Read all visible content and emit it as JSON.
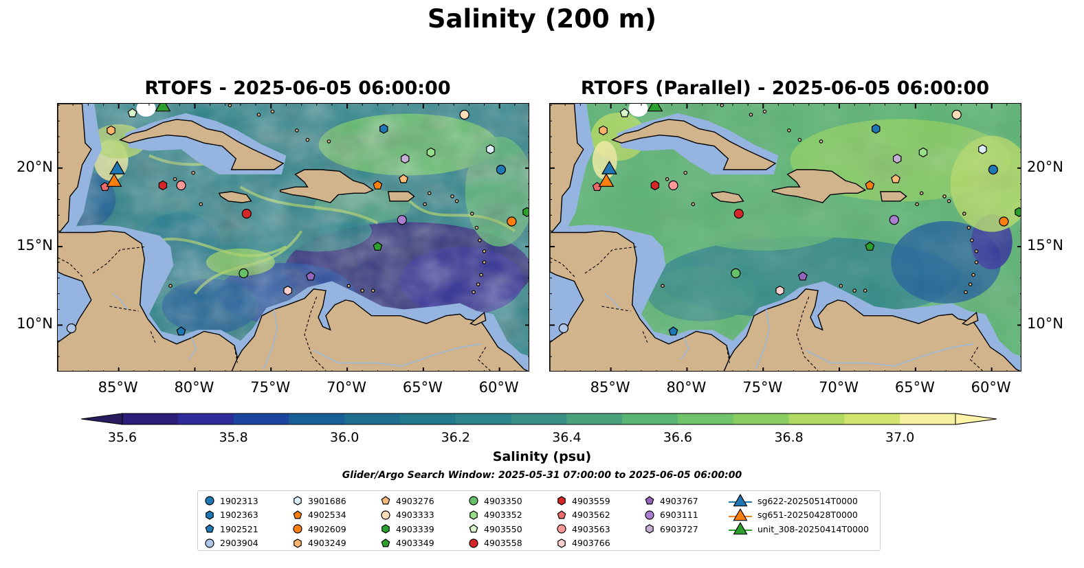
{
  "title": "Salinity (200 m)",
  "panels": [
    {
      "title": "RTOFS - 2025-06-05 06:00:00"
    },
    {
      "title": "RTOFS (Parallel) - 2025-06-05 06:00:00"
    }
  ],
  "map": {
    "lon_range": [
      -89,
      -58
    ],
    "lat_range": [
      7,
      24.1
    ],
    "lon_ticks": [
      "85°W",
      "80°W",
      "75°W",
      "70°W",
      "65°W",
      "60°W"
    ],
    "lon_tick_values": [
      -85,
      -80,
      -75,
      -70,
      -65,
      -60
    ],
    "lat_ticks": [
      "10°N",
      "15°N",
      "20°N"
    ],
    "lat_tick_values": [
      10,
      15,
      20
    ],
    "land_color": "#d2b48c",
    "shelf_color": "#96b4e0"
  },
  "colorbar": {
    "label": "Salinity (psu)",
    "min": 35.6,
    "max": 37.0,
    "step": 0.1,
    "ticks": [
      "35.6",
      "35.8",
      "36.0",
      "36.2",
      "36.4",
      "36.6",
      "36.8",
      "37.0"
    ],
    "colors": [
      "#2c1e78",
      "#2e2b9a",
      "#1c45a0",
      "#1a5e96",
      "#1f6e90",
      "#23798c",
      "#2d848a",
      "#3b9085",
      "#4aa27c",
      "#5cb474",
      "#6fc46a",
      "#8ace62",
      "#b0da62",
      "#d2e46e",
      "#f5f0a0"
    ]
  },
  "search_window": "Glider/Argo Search Window: 2025-05-31 07:00:00 to 2025-06-05 06:00:00",
  "legend": {
    "columns": [
      [
        {
          "label": "1902313",
          "shape": "circle",
          "color": "#1f77b4"
        },
        {
          "label": "1902363",
          "shape": "hexagon",
          "color": "#1f77b4"
        },
        {
          "label": "1902521",
          "shape": "pentagon",
          "color": "#1f77b4"
        },
        {
          "label": "2903904",
          "shape": "circle",
          "color": "#aec7e8"
        }
      ],
      [
        {
          "label": "3901686",
          "shape": "hexagon",
          "color": "#dceefa"
        },
        {
          "label": "4902534",
          "shape": "pentagon",
          "color": "#ff7f0e"
        },
        {
          "label": "4902609",
          "shape": "circle",
          "color": "#ff7f0e"
        },
        {
          "label": "4903249",
          "shape": "hexagon",
          "color": "#ffb36b"
        }
      ],
      [
        {
          "label": "4903276",
          "shape": "pentagon",
          "color": "#ffbb78"
        },
        {
          "label": "4903333",
          "shape": "circle",
          "color": "#ffdcb8"
        },
        {
          "label": "4903339",
          "shape": "hexagon",
          "color": "#2ca02c"
        },
        {
          "label": "4903349",
          "shape": "pentagon",
          "color": "#2ca02c"
        }
      ],
      [
        {
          "label": "4903350",
          "shape": "circle",
          "color": "#66c266"
        },
        {
          "label": "4903352",
          "shape": "hexagon",
          "color": "#98df8a"
        },
        {
          "label": "4903550",
          "shape": "pentagon",
          "color": "#d8f5cc"
        },
        {
          "label": "4903558",
          "shape": "circle",
          "color": "#d62728"
        }
      ],
      [
        {
          "label": "4903559",
          "shape": "hexagon",
          "color": "#d62728"
        },
        {
          "label": "4903562",
          "shape": "pentagon",
          "color": "#ee6a6a"
        },
        {
          "label": "4903563",
          "shape": "circle",
          "color": "#ff9896"
        },
        {
          "label": "4903766",
          "shape": "hexagon",
          "color": "#ffd0cf"
        }
      ],
      [
        {
          "label": "4903767",
          "shape": "pentagon",
          "color": "#9467bd"
        },
        {
          "label": "6903111",
          "shape": "circle",
          "color": "#a97fd0"
        },
        {
          "label": "6903727",
          "shape": "hexagon",
          "color": "#c5b0d5"
        }
      ],
      [
        {
          "label": "sg622-20250514T0000",
          "shape": "triangle",
          "color": "#1f77b4"
        },
        {
          "label": "sg651-20250428T0000",
          "shape": "triangle",
          "color": "#ff7f0e"
        },
        {
          "label": "unit_308-20250414T0000",
          "shape": "triangle",
          "color": "#2ca02c"
        }
      ]
    ]
  },
  "floats": [
    {
      "id": "1902313",
      "shape": "circle",
      "color": "#1f77b4",
      "lon": -59.9,
      "lat": 19.9
    },
    {
      "id": "1902363",
      "shape": "hexagon",
      "color": "#1f77b4",
      "lon": -67.6,
      "lat": 22.5
    },
    {
      "id": "1902521",
      "shape": "pentagon",
      "color": "#1f77b4",
      "lon": -80.9,
      "lat": 9.6
    },
    {
      "id": "2903904",
      "shape": "circle",
      "color": "#aec7e8",
      "lon": -88.1,
      "lat": 9.8
    },
    {
      "id": "3901686",
      "shape": "hexagon",
      "color": "#dceefa",
      "lon": -60.6,
      "lat": 21.2
    },
    {
      "id": "4902534",
      "shape": "pentagon",
      "color": "#ff7f0e",
      "lon": -68.0,
      "lat": 18.9
    },
    {
      "id": "4902609",
      "shape": "circle",
      "color": "#ff7f0e",
      "lon": -59.2,
      "lat": 16.6
    },
    {
      "id": "4903249",
      "shape": "hexagon",
      "color": "#ffb36b",
      "lon": -85.5,
      "lat": 22.4
    },
    {
      "id": "4903276",
      "shape": "pentagon",
      "color": "#ffbb78",
      "lon": -66.3,
      "lat": 19.3
    },
    {
      "id": "4903333",
      "shape": "circle",
      "color": "#ffdcb8",
      "lon": -62.3,
      "lat": 23.4
    },
    {
      "id": "4903339",
      "shape": "hexagon",
      "color": "#2ca02c",
      "lon": -58.2,
      "lat": 17.2
    },
    {
      "id": "4903349",
      "shape": "pentagon",
      "color": "#2ca02c",
      "lon": -68.0,
      "lat": 15.0
    },
    {
      "id": "4903350",
      "shape": "circle",
      "color": "#66c266",
      "lon": -76.8,
      "lat": 13.3
    },
    {
      "id": "4903352",
      "shape": "hexagon",
      "color": "#98df8a",
      "lon": -64.5,
      "lat": 21.0
    },
    {
      "id": "4903550",
      "shape": "pentagon",
      "color": "#d8f5cc",
      "lon": -84.1,
      "lat": 23.5
    },
    {
      "id": "4903558",
      "shape": "circle",
      "color": "#d62728",
      "lon": -76.6,
      "lat": 17.1
    },
    {
      "id": "4903559",
      "shape": "hexagon",
      "color": "#d62728",
      "lon": -82.1,
      "lat": 18.9
    },
    {
      "id": "4903562",
      "shape": "pentagon",
      "color": "#ee6a6a",
      "lon": -85.9,
      "lat": 18.8
    },
    {
      "id": "4903563",
      "shape": "circle",
      "color": "#ff9896",
      "lon": -80.9,
      "lat": 18.9
    },
    {
      "id": "4903766",
      "shape": "hexagon",
      "color": "#ffd0cf",
      "lon": -73.9,
      "lat": 12.2
    },
    {
      "id": "4903767",
      "shape": "pentagon",
      "color": "#9467bd",
      "lon": -72.4,
      "lat": 13.1
    },
    {
      "id": "6903111",
      "shape": "circle",
      "color": "#a97fd0",
      "lon": -66.4,
      "lat": 16.7
    },
    {
      "id": "6903727",
      "shape": "hexagon",
      "color": "#c5b0d5",
      "lon": -66.2,
      "lat": 20.6
    }
  ],
  "gliders": [
    {
      "id": "sg622-20250514T0000",
      "color": "#1f77b4",
      "lon": -85.1,
      "lat": 20.0
    },
    {
      "id": "sg651-20250428T0000",
      "color": "#ff7f0e",
      "lon": -85.3,
      "lat": 19.2
    },
    {
      "id": "unit_308-20250414T0000",
      "color": "#2ca02c",
      "lon": -82.1,
      "lat": 24.0
    }
  ]
}
